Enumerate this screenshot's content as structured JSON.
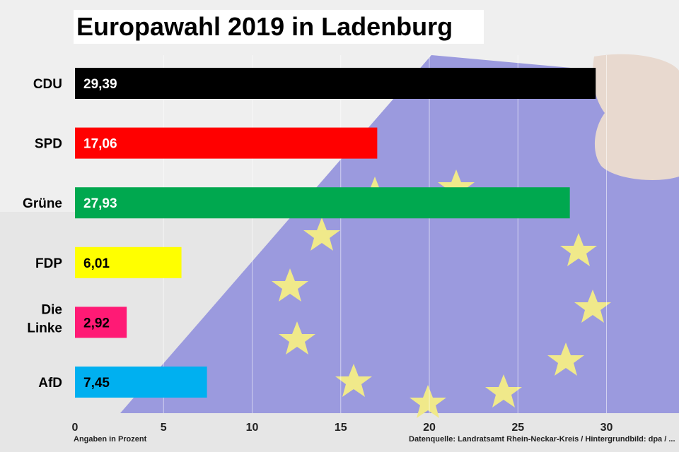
{
  "title": "Europawahl 2019 in Ladenburg",
  "footer_left": "Angaben in Prozent",
  "footer_right": "Datenquelle: Landratsamt Rhein-Neckar-Kreis / Hintergrundbild: dpa / ...",
  "chart_data": {
    "type": "bar",
    "orientation": "horizontal",
    "categories": [
      "CDU",
      "SPD",
      "Grüne",
      "FDP",
      "Die Linke",
      "AfD"
    ],
    "values": [
      29.39,
      17.06,
      27.93,
      6.01,
      2.92,
      7.45
    ],
    "value_labels": [
      "29,39",
      "17,06",
      "27,93",
      "6,01",
      "2,92",
      "7,45"
    ],
    "colors": [
      "#000000",
      "#ff0000",
      "#00a84f",
      "#ffff00",
      "#ff1a75",
      "#00b0f0"
    ],
    "label_colors": [
      "#ffffff",
      "#ffffff",
      "#ffffff",
      "#000000",
      "#000000",
      "#000000"
    ],
    "xticks": [
      "0",
      "5",
      "10",
      "15",
      "20",
      "25",
      "30"
    ],
    "xlim": [
      0,
      34
    ],
    "grid": "vertical"
  }
}
